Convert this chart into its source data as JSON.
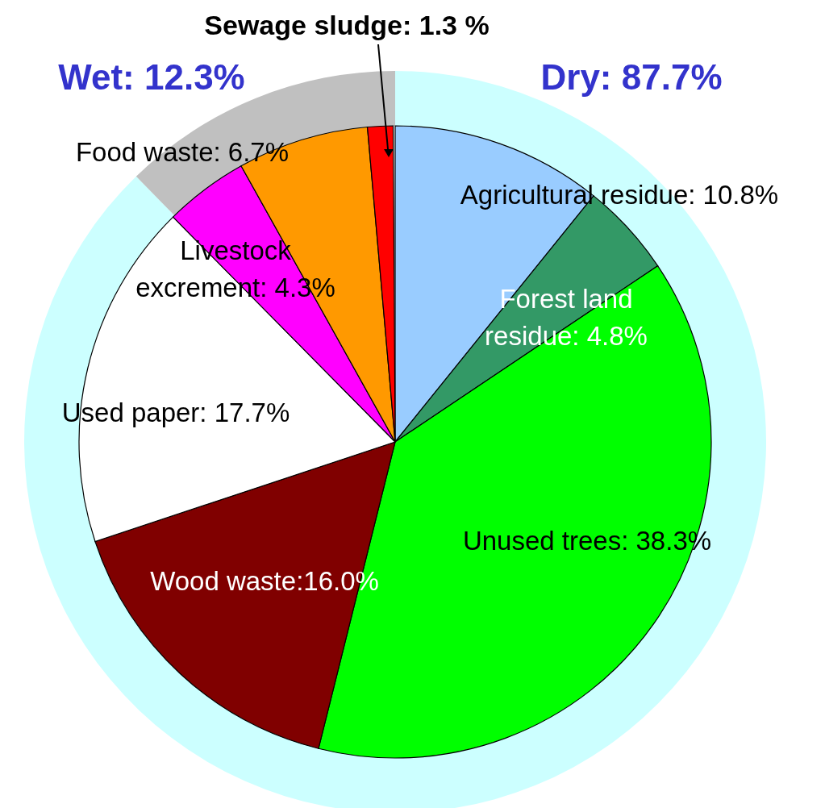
{
  "chart_data": [
    {
      "type": "pie",
      "categories": [
        "Agricultural residue",
        "Forest land residue",
        "Unused trees",
        "Wood waste",
        "Used paper",
        "Livestock excrement",
        "Food waste",
        "Sewage sludge"
      ],
      "values": [
        10.8,
        4.8,
        38.3,
        16.0,
        17.7,
        4.3,
        6.7,
        1.3
      ],
      "value_labels": [
        ": 10.8%",
        ": 4.8%",
        ": 38.3%",
        ":16.0%",
        ": 17.7%",
        ": 4.3%",
        ": 6.7%",
        ": 1.3 %"
      ],
      "colors": [
        "#99ccff",
        "#339966",
        "#00ff00",
        "#800000",
        "#ffffff",
        "#ff00ff",
        "#ff9900",
        "#ff0000"
      ],
      "legend": false
    },
    {
      "type": "donut",
      "categories": [
        "Dry",
        "Wet"
      ],
      "values": [
        87.7,
        12.3
      ],
      "value_labels": [
        ": 87.7%",
        ": 12.3%"
      ],
      "colors": [
        "#ccffff",
        "#c0c0c0"
      ],
      "legend": false
    }
  ]
}
